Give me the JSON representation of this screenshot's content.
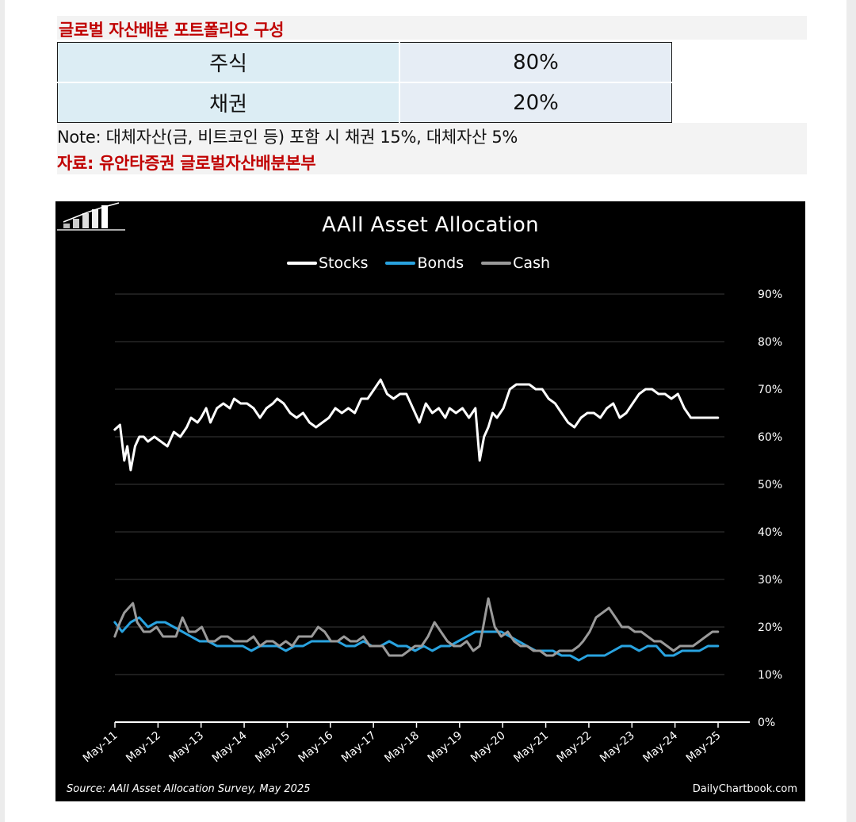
{
  "report": {
    "title": "글로벌 자산배분 포트폴리오 구성",
    "allocation_rows": [
      {
        "label": "주식",
        "value": "80%"
      },
      {
        "label": "채권",
        "value": "20%"
      }
    ],
    "note": "Note: 대체자산(금, 비트코인 등) 포함 시 채권 15%, 대체자산 5%",
    "source": "자료: 유안타증권 글로벌자산배분본부"
  },
  "chart_data": {
    "type": "line",
    "title": "AAII Asset Allocation",
    "source": "Source: AAII Asset Allocation Survey, May 2025",
    "credit": "DailyChartbook.com",
    "legend_position": "top-center",
    "grid": true,
    "y_axis_side": "right",
    "ylim": [
      0,
      90
    ],
    "y_ticks": [
      "0%",
      "10%",
      "20%",
      "30%",
      "40%",
      "50%",
      "60%",
      "70%",
      "80%",
      "90%"
    ],
    "x_range": [
      2011.333,
      2025.333
    ],
    "x_ticks": [
      "May-11",
      "May-12",
      "May-13",
      "May-14",
      "May-15",
      "May-16",
      "May-17",
      "May-18",
      "May-19",
      "May-20",
      "May-21",
      "May-22",
      "May-23",
      "May-24",
      "May-25"
    ],
    "series": [
      {
        "name": "Stocks",
        "color": "#ffffff",
        "x": [
          2011.33,
          2011.45,
          2011.55,
          2011.62,
          2011.7,
          2011.8,
          2011.9,
          2012.0,
          2012.1,
          2012.25,
          2012.4,
          2012.55,
          2012.7,
          2012.85,
          2013.0,
          2013.1,
          2013.25,
          2013.33,
          2013.45,
          2013.55,
          2013.7,
          2013.85,
          2014.0,
          2014.1,
          2014.25,
          2014.4,
          2014.55,
          2014.7,
          2014.85,
          2015.0,
          2015.1,
          2015.25,
          2015.4,
          2015.55,
          2015.7,
          2015.85,
          2016.0,
          2016.15,
          2016.3,
          2016.45,
          2016.6,
          2016.75,
          2016.9,
          2017.05,
          2017.2,
          2017.35,
          2017.5,
          2017.65,
          2017.8,
          2017.95,
          2018.1,
          2018.25,
          2018.4,
          2018.55,
          2018.7,
          2018.85,
          2019.0,
          2019.1,
          2019.25,
          2019.4,
          2019.55,
          2019.7,
          2019.8,
          2019.9,
          2020.0,
          2020.1,
          2020.2,
          2020.35,
          2020.5,
          2020.65,
          2020.8,
          2020.95,
          2021.1,
          2021.25,
          2021.4,
          2021.55,
          2021.7,
          2021.85,
          2022.0,
          2022.15,
          2022.3,
          2022.45,
          2022.6,
          2022.75,
          2022.9,
          2023.05,
          2023.2,
          2023.35,
          2023.5,
          2023.65,
          2023.8,
          2023.95,
          2024.1,
          2024.25,
          2024.4,
          2024.55,
          2024.7,
          2024.85,
          2025.0,
          2025.15,
          2025.33
        ],
        "values": [
          61.5,
          62.5,
          55,
          58,
          53,
          58,
          60,
          60,
          59,
          60,
          59,
          58,
          61,
          60,
          62,
          64,
          63,
          64,
          66,
          63,
          66,
          67,
          66,
          68,
          67,
          67,
          66,
          64,
          66,
          67,
          68,
          67,
          65,
          64,
          65,
          63,
          62,
          63,
          64,
          66,
          65,
          66,
          65,
          68,
          68,
          70,
          72,
          69,
          68,
          69,
          69,
          66,
          63,
          67,
          65,
          66,
          64,
          66,
          65,
          66,
          64,
          66,
          55,
          60,
          62,
          65,
          64,
          66,
          70,
          71,
          71,
          71,
          70,
          70,
          68,
          67,
          65,
          63,
          62,
          64,
          65,
          65,
          64,
          66,
          67,
          64,
          65,
          67,
          69,
          70,
          70,
          69,
          69,
          68,
          69,
          66,
          64,
          64,
          64,
          64,
          64
        ],
        "values_note": ""
      },
      {
        "name": "Bonds",
        "color": "#29a3e0",
        "x": [
          2011.33,
          2011.5,
          2011.7,
          2011.9,
          2012.1,
          2012.3,
          2012.5,
          2012.7,
          2012.9,
          2013.1,
          2013.3,
          2013.5,
          2013.7,
          2013.9,
          2014.1,
          2014.3,
          2014.5,
          2014.7,
          2014.9,
          2015.1,
          2015.3,
          2015.5,
          2015.7,
          2015.9,
          2016.1,
          2016.3,
          2016.5,
          2016.7,
          2016.9,
          2017.1,
          2017.3,
          2017.5,
          2017.7,
          2017.9,
          2018.1,
          2018.3,
          2018.5,
          2018.7,
          2018.9,
          2019.1,
          2019.3,
          2019.5,
          2019.7,
          2019.9,
          2020.1,
          2020.3,
          2020.5,
          2020.7,
          2020.9,
          2021.1,
          2021.3,
          2021.5,
          2021.7,
          2021.9,
          2022.1,
          2022.3,
          2022.5,
          2022.7,
          2022.9,
          2023.1,
          2023.3,
          2023.5,
          2023.7,
          2023.9,
          2024.1,
          2024.3,
          2024.5,
          2024.7,
          2024.9,
          2025.1,
          2025.33
        ],
        "values": [
          21,
          19,
          21,
          22,
          20,
          21,
          21,
          20,
          19,
          18,
          17,
          17,
          16,
          16,
          16,
          16,
          15,
          16,
          16,
          16,
          15,
          16,
          16,
          17,
          17,
          17,
          17,
          16,
          16,
          17,
          16,
          16,
          17,
          16,
          16,
          15,
          16,
          15,
          16,
          16,
          17,
          18,
          19,
          19,
          19,
          19,
          18,
          17,
          16,
          15,
          15,
          15,
          14,
          14,
          13,
          14,
          14,
          14,
          15,
          16,
          16,
          15,
          16,
          16,
          14,
          14,
          15,
          15,
          15,
          16,
          16
        ]
      },
      {
        "name": "Cash",
        "color": "#9a9a9a",
        "x": [
          2011.33,
          2011.45,
          2011.55,
          2011.65,
          2011.75,
          2011.85,
          2012.0,
          2012.15,
          2012.3,
          2012.45,
          2012.6,
          2012.75,
          2012.9,
          2013.05,
          2013.2,
          2013.35,
          2013.5,
          2013.65,
          2013.8,
          2013.95,
          2014.1,
          2014.25,
          2014.4,
          2014.55,
          2014.7,
          2014.85,
          2015.0,
          2015.15,
          2015.3,
          2015.45,
          2015.6,
          2015.75,
          2015.9,
          2016.05,
          2016.2,
          2016.35,
          2016.5,
          2016.65,
          2016.8,
          2016.95,
          2017.1,
          2017.25,
          2017.4,
          2017.55,
          2017.7,
          2017.85,
          2018.0,
          2018.15,
          2018.3,
          2018.45,
          2018.6,
          2018.75,
          2018.9,
          2019.05,
          2019.2,
          2019.35,
          2019.5,
          2019.65,
          2019.8,
          2019.9,
          2020.0,
          2020.15,
          2020.3,
          2020.45,
          2020.6,
          2020.75,
          2020.9,
          2021.05,
          2021.2,
          2021.35,
          2021.5,
          2021.65,
          2021.8,
          2021.95,
          2022.1,
          2022.2,
          2022.35,
          2022.5,
          2022.65,
          2022.8,
          2022.95,
          2023.1,
          2023.25,
          2023.4,
          2023.55,
          2023.7,
          2023.85,
          2024.0,
          2024.15,
          2024.3,
          2024.45,
          2024.6,
          2024.75,
          2024.9,
          2025.05,
          2025.2,
          2025.33
        ],
        "values": [
          18,
          21,
          23,
          24,
          25,
          21,
          19,
          19,
          20,
          18,
          18,
          18,
          22,
          19,
          19,
          20,
          17,
          17,
          18,
          18,
          17,
          17,
          17,
          18,
          16,
          17,
          17,
          16,
          17,
          16,
          18,
          18,
          18,
          20,
          19,
          17,
          17,
          18,
          17,
          17,
          18,
          16,
          16,
          16,
          14,
          14,
          14,
          15,
          16,
          16,
          18,
          21,
          19,
          17,
          16,
          16,
          17,
          15,
          16,
          21,
          26,
          20,
          18,
          19,
          17,
          16,
          16,
          15,
          15,
          14,
          14,
          15,
          15,
          15,
          16,
          17,
          19,
          22,
          23,
          24,
          22,
          20,
          20,
          19,
          19,
          18,
          17,
          17,
          16,
          15,
          16,
          16,
          16,
          17,
          18,
          19,
          19
        ]
      }
    ]
  }
}
